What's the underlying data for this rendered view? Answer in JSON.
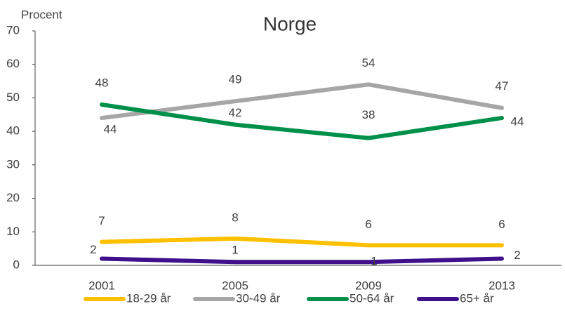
{
  "chart_data": {
    "type": "line",
    "title": "Norge",
    "y_label": "Procent",
    "categories": [
      "2001",
      "2005",
      "2009",
      "2013"
    ],
    "series": [
      {
        "name": "18-29 år",
        "color": "#ffc000",
        "values": [
          7,
          8,
          6,
          6
        ]
      },
      {
        "name": "30-49 år",
        "color": "#a6a6a6",
        "values": [
          44,
          49,
          54,
          47
        ]
      },
      {
        "name": "50-64 år",
        "color": "#00904a",
        "values": [
          48,
          42,
          38,
          44
        ]
      },
      {
        "name": "65+ år",
        "color": "#3f0f8c",
        "values": [
          2,
          1,
          1,
          2
        ]
      }
    ],
    "ylim": [
      0,
      70
    ],
    "yticks": [
      0,
      10,
      20,
      30,
      40,
      50,
      60,
      70
    ],
    "grid": false,
    "legend": "bottom"
  }
}
